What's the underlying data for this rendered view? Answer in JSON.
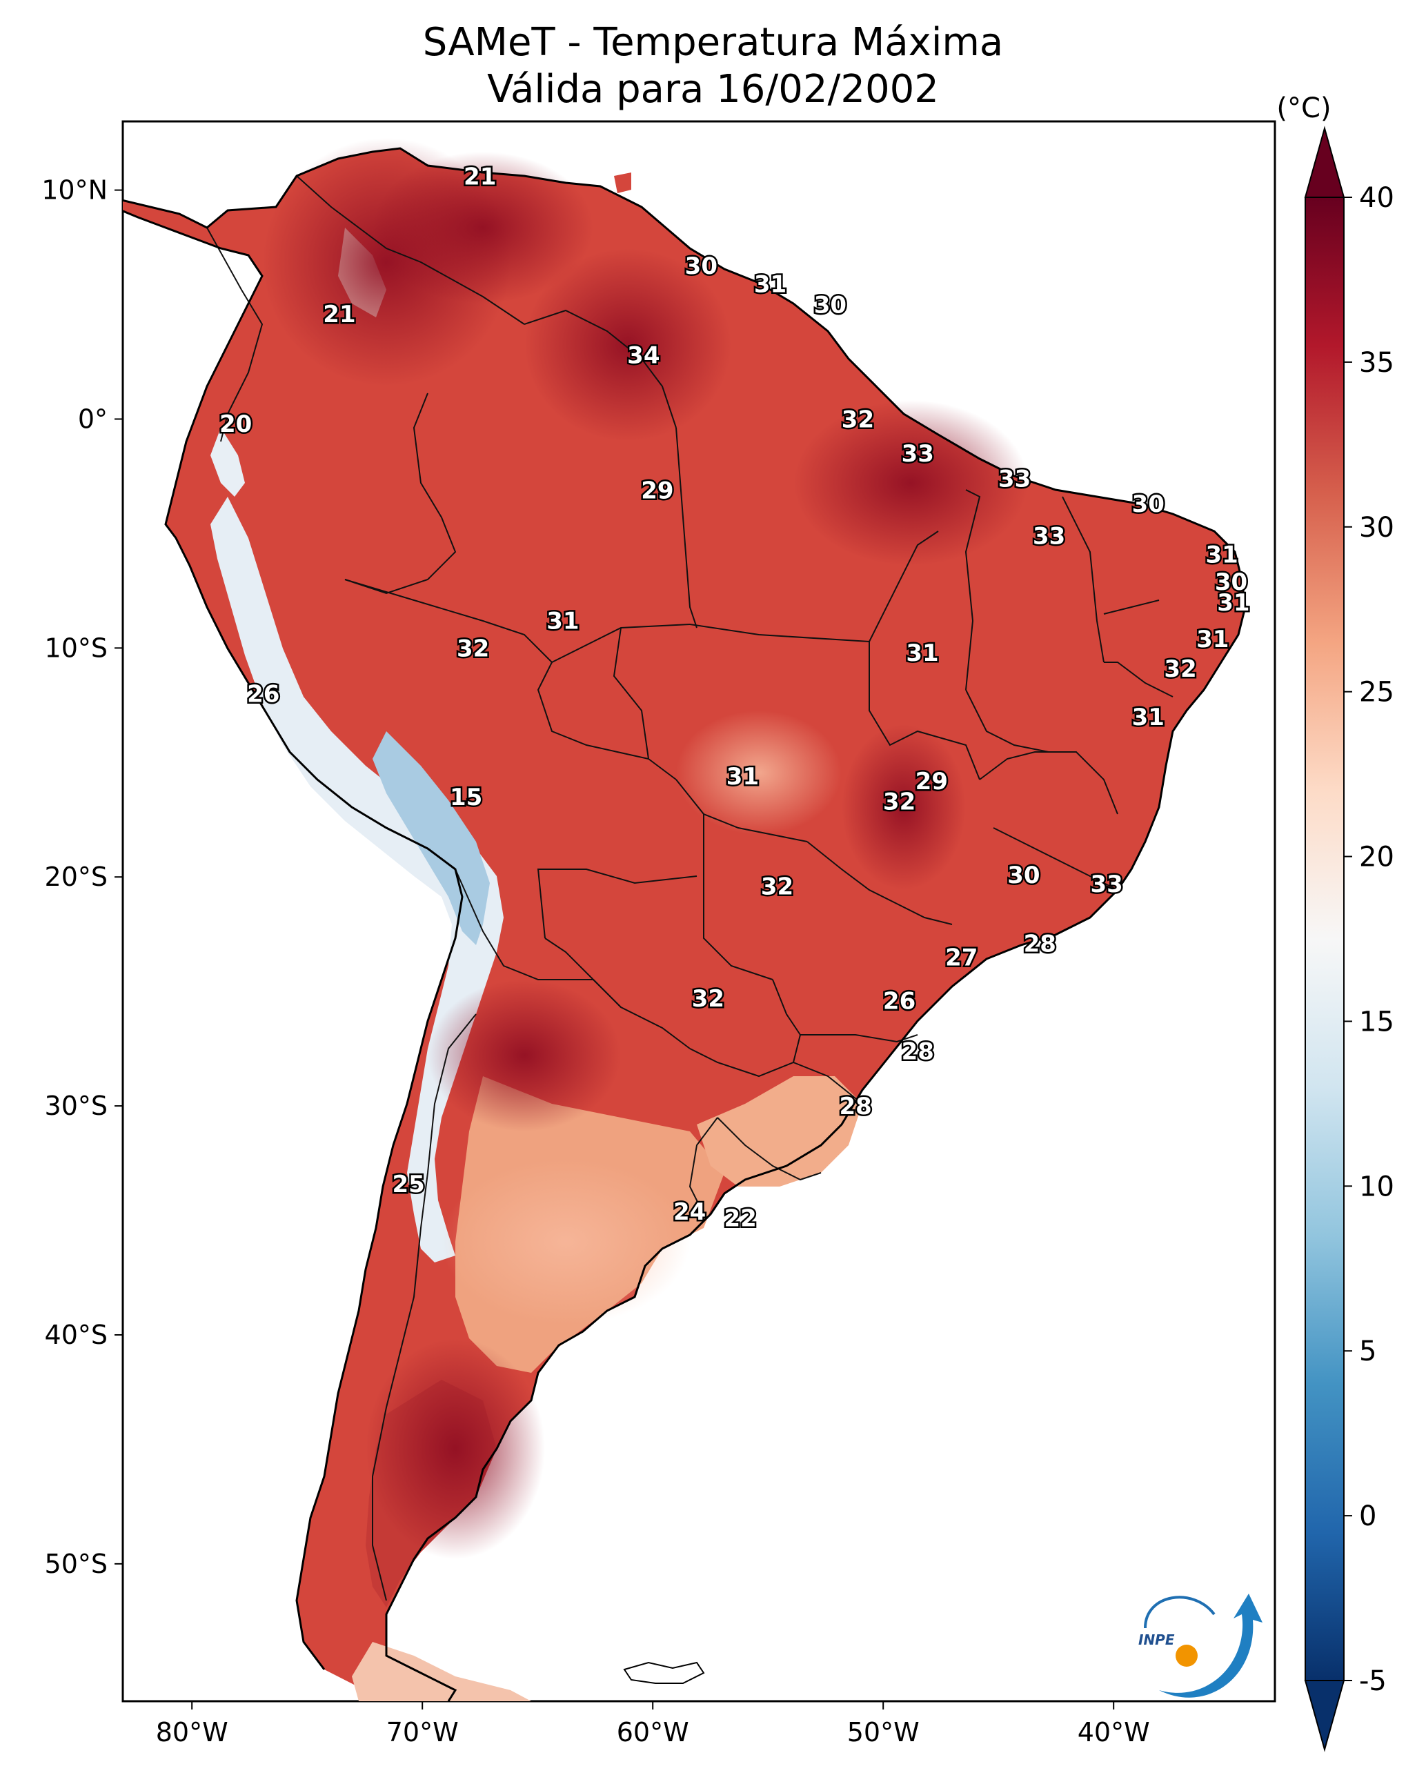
{
  "title": {
    "line1": "SAMeT - Temperatura Máxima",
    "line2": "Válida para 16/02/2002"
  },
  "colorbar": {
    "unit": "(°C)",
    "min": -5,
    "max": 40,
    "extend": "both",
    "ticks": [
      -5,
      0,
      5,
      10,
      15,
      20,
      25,
      30,
      35,
      40
    ],
    "colors": [
      "#08306b",
      "#2166ac",
      "#4393c3",
      "#92c5de",
      "#d1e5f0",
      "#f7f7f7",
      "#fddbc7",
      "#f4a582",
      "#d6604d",
      "#b2182b",
      "#67001f"
    ]
  },
  "map": {
    "lon_range": [
      -83,
      -33
    ],
    "lat_range": [
      -56,
      13
    ],
    "x_ticks": [
      {
        "value": -80,
        "label": "80°W"
      },
      {
        "value": -70,
        "label": "70°W"
      },
      {
        "value": -60,
        "label": "60°W"
      },
      {
        "value": -50,
        "label": "50°W"
      },
      {
        "value": -40,
        "label": "40°W"
      }
    ],
    "y_ticks": [
      {
        "value": 10,
        "label": "10°N"
      },
      {
        "value": 0,
        "label": "0°"
      },
      {
        "value": -10,
        "label": "10°S"
      },
      {
        "value": -20,
        "label": "20°S"
      },
      {
        "value": -30,
        "label": "30°S"
      },
      {
        "value": -40,
        "label": "40°S"
      },
      {
        "value": -50,
        "label": "50°S"
      }
    ],
    "station_labels": [
      {
        "lon": -67.5,
        "lat": 10.6,
        "text": "21"
      },
      {
        "lon": -57.9,
        "lat": 6.7,
        "text": "30"
      },
      {
        "lon": -54.9,
        "lat": 5.9,
        "text": "31"
      },
      {
        "lon": -52.3,
        "lat": 5.0,
        "text": "30"
      },
      {
        "lon": -73.6,
        "lat": 4.6,
        "text": "21"
      },
      {
        "lon": -60.4,
        "lat": 2.8,
        "text": "34"
      },
      {
        "lon": -78.1,
        "lat": -0.2,
        "text": "20"
      },
      {
        "lon": -51.1,
        "lat": 0.0,
        "text": "32"
      },
      {
        "lon": -48.5,
        "lat": -1.5,
        "text": "33"
      },
      {
        "lon": -44.3,
        "lat": -2.6,
        "text": "33"
      },
      {
        "lon": -59.8,
        "lat": -3.1,
        "text": "29"
      },
      {
        "lon": -38.5,
        "lat": -3.7,
        "text": "30"
      },
      {
        "lon": -42.8,
        "lat": -5.1,
        "text": "33"
      },
      {
        "lon": -35.3,
        "lat": -5.9,
        "text": "31"
      },
      {
        "lon": -34.9,
        "lat": -7.1,
        "text": "30"
      },
      {
        "lon": -34.8,
        "lat": -8.0,
        "text": "31"
      },
      {
        "lon": -63.9,
        "lat": -8.8,
        "text": "31"
      },
      {
        "lon": -35.7,
        "lat": -9.6,
        "text": "31"
      },
      {
        "lon": -67.8,
        "lat": -10.0,
        "text": "32"
      },
      {
        "lon": -48.3,
        "lat": -10.2,
        "text": "31"
      },
      {
        "lon": -37.1,
        "lat": -10.9,
        "text": "32"
      },
      {
        "lon": -76.9,
        "lat": -12.0,
        "text": "26"
      },
      {
        "lon": -38.5,
        "lat": -13.0,
        "text": "31"
      },
      {
        "lon": -56.1,
        "lat": -15.6,
        "text": "31"
      },
      {
        "lon": -47.9,
        "lat": -15.8,
        "text": "29"
      },
      {
        "lon": -49.3,
        "lat": -16.7,
        "text": "32"
      },
      {
        "lon": -68.1,
        "lat": -16.5,
        "text": "15"
      },
      {
        "lon": -43.9,
        "lat": -19.9,
        "text": "30"
      },
      {
        "lon": -54.6,
        "lat": -20.4,
        "text": "32"
      },
      {
        "lon": -40.3,
        "lat": -20.3,
        "text": "33"
      },
      {
        "lon": -43.2,
        "lat": -22.9,
        "text": "28"
      },
      {
        "lon": -46.6,
        "lat": -23.5,
        "text": "27"
      },
      {
        "lon": -57.6,
        "lat": -25.3,
        "text": "32"
      },
      {
        "lon": -49.3,
        "lat": -25.4,
        "text": "26"
      },
      {
        "lon": -48.5,
        "lat": -27.6,
        "text": "28"
      },
      {
        "lon": -51.2,
        "lat": -30.0,
        "text": "28"
      },
      {
        "lon": -70.6,
        "lat": -33.4,
        "text": "25"
      },
      {
        "lon": -58.4,
        "lat": -34.6,
        "text": "24"
      },
      {
        "lon": -56.2,
        "lat": -34.9,
        "text": "22"
      }
    ]
  },
  "logo": {
    "text": "INPE"
  }
}
